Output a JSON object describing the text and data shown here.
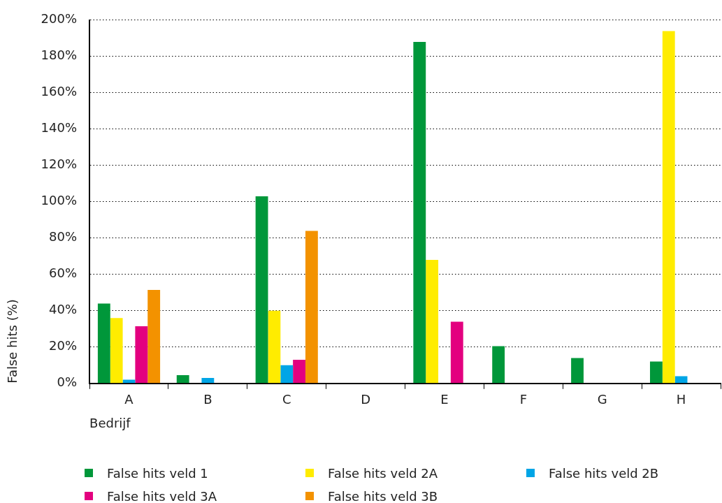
{
  "chart_data": {
    "type": "bar",
    "categories": [
      "A",
      "B",
      "C",
      "D",
      "E",
      "F",
      "G",
      "H"
    ],
    "xlabel": "Bedrijf",
    "ylabel": "False hits (%)",
    "ylim": [
      0,
      200
    ],
    "yticks": [
      {
        "value": 0,
        "label": "0%"
      },
      {
        "value": 20,
        "label": "20%"
      },
      {
        "value": 40,
        "label": "40%"
      },
      {
        "value": 60,
        "label": "60%"
      },
      {
        "value": 80,
        "label": "80%"
      },
      {
        "value": 100,
        "label": "100%"
      },
      {
        "value": 120,
        "label": "120%"
      },
      {
        "value": 140,
        "label": "140%"
      },
      {
        "value": 160,
        "label": "160%"
      },
      {
        "value": 180,
        "label": "180%"
      },
      {
        "value": 200,
        "label": "200%"
      }
    ],
    "grid": "y",
    "legend": "bottom",
    "series": [
      {
        "name": "False hits veld 1",
        "color": "#00973a",
        "values": [
          44,
          4.5,
          103,
          null,
          188,
          20.5,
          14,
          12
        ]
      },
      {
        "name": "False hits veld 2A",
        "color": "#ffec00",
        "values": [
          36,
          null,
          40,
          null,
          68,
          null,
          null,
          194
        ]
      },
      {
        "name": "False hits veld 2B",
        "color": "#00a5e6",
        "values": [
          2,
          3,
          10,
          null,
          null,
          null,
          null,
          4
        ]
      },
      {
        "name": "False hits veld 3A",
        "color": "#e3007f",
        "values": [
          31.5,
          null,
          13,
          null,
          34,
          null,
          null,
          null
        ]
      },
      {
        "name": "False hits veld 3B",
        "color": "#f39200",
        "values": [
          51.5,
          null,
          84,
          null,
          null,
          null,
          null,
          null
        ]
      }
    ]
  }
}
